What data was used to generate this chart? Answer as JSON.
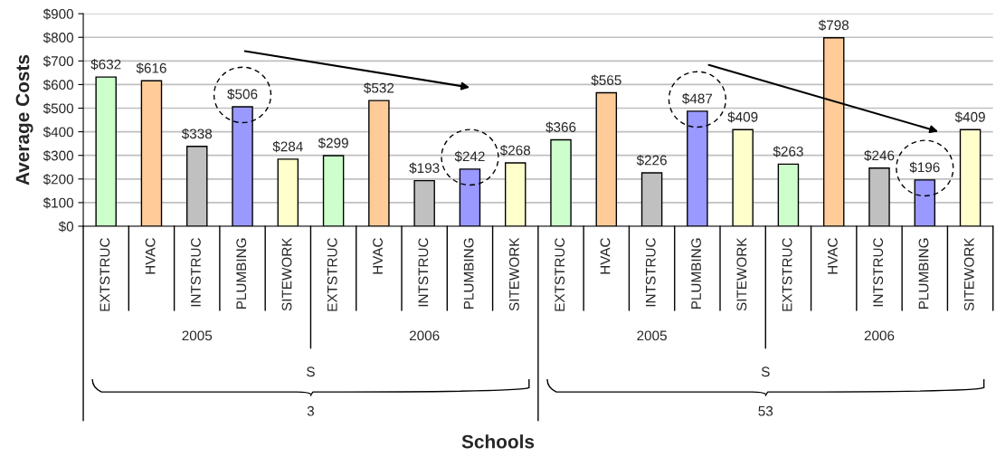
{
  "chart_data": {
    "type": "bar",
    "ylabel": "Average Costs",
    "categories": [
      "EXTSTRUC",
      "HVAC",
      "INTSTRUC",
      "PLUMBING",
      "SITEWORK",
      "EXTSTRUC",
      "HVAC",
      "INTSTRUC",
      "PLUMBING",
      "SITEWORK",
      "EXTSTRUC",
      "HVAC",
      "INTSTRUC",
      "PLUMBING",
      "SITEWORK",
      "EXTSTRUC",
      "HVAC",
      "INTSTRUC",
      "PLUMBING",
      "SITEWORK"
    ],
    "values": [
      632,
      616,
      338,
      506,
      284,
      299,
      532,
      193,
      242,
      268,
      366,
      565,
      226,
      487,
      409,
      263,
      798,
      246,
      196,
      409
    ],
    "value_labels": [
      "$632",
      "$616",
      "$338",
      "$506",
      "$284",
      "$299",
      "$532",
      "$193",
      "$242",
      "$268",
      "$366",
      "$565",
      "$226",
      "$487",
      "$409",
      "$263",
      "$798",
      "$246",
      "$196",
      "$409"
    ],
    "colors": [
      "#ccffcc",
      "#ffcc99",
      "#c0c0c0",
      "#9999ff",
      "#ffffcc",
      "#ccffcc",
      "#ffcc99",
      "#c0c0c0",
      "#9999ff",
      "#ffffcc",
      "#ccffcc",
      "#ffcc99",
      "#c0c0c0",
      "#9999ff",
      "#ffffcc",
      "#ccffcc",
      "#ffcc99",
      "#c0c0c0",
      "#9999ff",
      "#ffffcc"
    ],
    "ylim": [
      0,
      900
    ],
    "yticks": [
      {
        "value": 0,
        "label": "$0"
      },
      {
        "value": 100,
        "label": "$100"
      },
      {
        "value": 200,
        "label": "$200"
      },
      {
        "value": 300,
        "label": "$300"
      },
      {
        "value": 400,
        "label": "$400"
      },
      {
        "value": 500,
        "label": "$500"
      },
      {
        "value": 600,
        "label": "$600"
      },
      {
        "value": 700,
        "label": "$700"
      },
      {
        "value": 800,
        "label": "$800"
      },
      {
        "value": 900,
        "label": "$900"
      }
    ],
    "grid": "y",
    "annotations": [
      "2005",
      "2006",
      "2005",
      "2006",
      "S",
      "S",
      "3",
      "53",
      "Schools"
    ]
  }
}
